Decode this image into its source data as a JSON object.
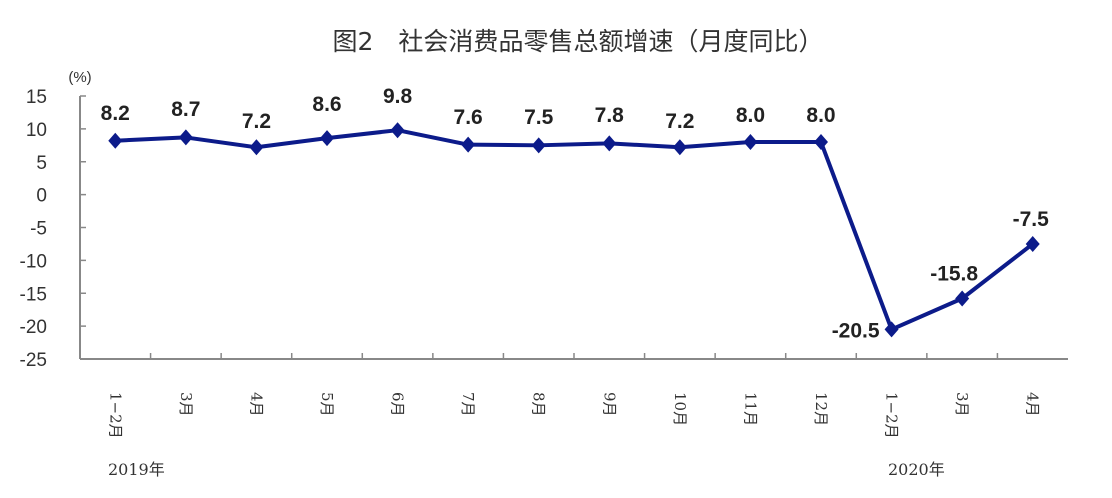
{
  "chart_data": {
    "type": "line",
    "title": "图2　社会消费品零售总额增速（月度同比）",
    "ylabel": "(%)",
    "xlabel": "",
    "ylim": [
      -25,
      15
    ],
    "yticks": [
      "15",
      "10",
      "5",
      "0",
      "-5",
      "-10",
      "-15",
      "-20",
      "-25"
    ],
    "ytick_values": [
      15,
      10,
      5,
      0,
      -5,
      -10,
      -15,
      -20,
      -25
    ],
    "categories": [
      "1−2月",
      "3月",
      "4月",
      "5月",
      "6月",
      "7月",
      "8月",
      "9月",
      "10月",
      "11月",
      "12月",
      "1−2月",
      "3月",
      "4月"
    ],
    "year_labels": [
      "2019年",
      "2020年"
    ],
    "series": [
      {
        "values": [
          8.2,
          8.7,
          7.2,
          8.6,
          9.8,
          7.6,
          7.5,
          7.8,
          7.2,
          8.0,
          8.0,
          -20.5,
          -15.8,
          -7.5
        ],
        "labels": [
          "8.2",
          "8.7",
          "7.2",
          "8.6",
          "9.8",
          "7.6",
          "7.5",
          "7.8",
          "7.2",
          "8.0",
          "8.0",
          "-20.5",
          "-15.8",
          "-7.5"
        ],
        "color": "#0c1b8a",
        "marker": "diamond"
      }
    ],
    "grid": false,
    "legend": "none"
  }
}
